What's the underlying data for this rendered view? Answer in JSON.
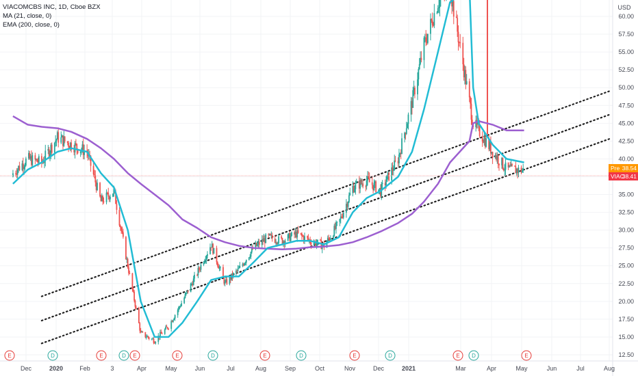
{
  "legend": {
    "symbol": "VIACOMCBS INC, 1D, Cboe BZX",
    "ma": "MA (21, close, 0)",
    "ema": "EMA (200, close, 0)"
  },
  "axis": {
    "currency": "USD",
    "ylim": [
      11.5,
      64
    ],
    "y_ticks": [
      "60.00",
      "57.50",
      "55.00",
      "52.50",
      "50.00",
      "47.50",
      "45.00",
      "42.50",
      "40.00",
      "37.50",
      "35.00",
      "32.50",
      "30.00",
      "27.50",
      "25.00",
      "22.50",
      "20.00",
      "17.50",
      "15.00",
      "12.50"
    ],
    "x_ticks": [
      "Dec",
      "2020",
      "Feb",
      "3",
      "Apr",
      "May",
      "Jun",
      "Jul",
      "Aug",
      "Sep",
      "Oct",
      "Nov",
      "Dec",
      "2021",
      "Mar",
      "Apr",
      "May",
      "Jun",
      "Jul",
      "Aug"
    ]
  },
  "price_tags": [
    {
      "label": "Pre",
      "value": "38.54",
      "color": "#ff9800"
    },
    {
      "label": "VIAC",
      "value": "38.41",
      "color": "#f23645"
    }
  ],
  "events": [
    "E",
    "D",
    "E",
    "D",
    "E",
    "E",
    "D",
    "E",
    "D",
    "E",
    "D",
    "E",
    "D",
    "E"
  ],
  "colors": {
    "up": "#26a69a",
    "down": "#ef5350",
    "ma": "#22bcd4",
    "ema": "#9c5fd0",
    "channel": "#222222",
    "earnings": "#e53935",
    "dividend": "#26a69a"
  },
  "chart_data": {
    "type": "candlestick",
    "title": "VIACOMCBS INC, 1D, Cboe BZX",
    "ylabel": "USD",
    "ylim": [
      11.5,
      64
    ],
    "dates": [
      "2019-11-15",
      "2019-12-01",
      "2019-12-16",
      "2020-01-02",
      "2020-01-17",
      "2020-02-03",
      "2020-02-18",
      "2020-03-03",
      "2020-03-18",
      "2020-04-01",
      "2020-04-16",
      "2020-05-01",
      "2020-05-16",
      "2020-06-01",
      "2020-06-16",
      "2020-07-01",
      "2020-07-16",
      "2020-08-01",
      "2020-08-16",
      "2020-09-01",
      "2020-09-16",
      "2020-10-01",
      "2020-10-16",
      "2020-11-01",
      "2020-11-16",
      "2020-12-01",
      "2020-12-16",
      "2021-01-04",
      "2021-01-19",
      "2021-02-01",
      "2021-02-16",
      "2021-03-01",
      "2021-03-22",
      "2021-03-26",
      "2021-04-01",
      "2021-04-16",
      "2021-05-01",
      "2021-05-20"
    ],
    "close": [
      38.0,
      40.0,
      39.5,
      43.0,
      42.0,
      41.0,
      34.0,
      35.5,
      25.0,
      15.5,
      14.5,
      16.5,
      20.0,
      24.0,
      28.0,
      22.5,
      24.5,
      27.5,
      29.0,
      28.5,
      29.5,
      28.5,
      27.8,
      31.0,
      36.0,
      37.0,
      35.5,
      40.0,
      48.0,
      56.0,
      62.0,
      64.0,
      48.0,
      45.0,
      44.0,
      41.0,
      38.5,
      38.41
    ],
    "series": [
      {
        "name": "MA (21, close, 0)",
        "values": [
          36.5,
          38.5,
          39.5,
          41.0,
          41.5,
          41.0,
          38.0,
          36.0,
          30.0,
          20.0,
          15.0,
          15.0,
          17.0,
          20.0,
          23.0,
          23.5,
          23.5,
          25.5,
          27.5,
          28.0,
          28.5,
          28.5,
          28.0,
          29.0,
          32.5,
          34.5,
          35.5,
          37.5,
          41.0,
          47.0,
          55.0,
          62.0,
          64.0,
          50.0,
          45.0,
          42.0,
          40.0,
          39.5
        ]
      },
      {
        "name": "EMA (200, close, 0)",
        "values": [
          46.0,
          44.8,
          44.5,
          44.3,
          43.8,
          42.8,
          41.5,
          40.0,
          38.0,
          36.5,
          35.0,
          33.5,
          31.5,
          30.3,
          29.0,
          28.3,
          27.8,
          27.5,
          27.4,
          27.3,
          27.4,
          27.6,
          27.7,
          27.9,
          28.3,
          29.0,
          29.8,
          31.0,
          32.3,
          34.0,
          36.5,
          39.5,
          42.5,
          45.0,
          45.3,
          44.8,
          44.0,
          44.0
        ]
      }
    ],
    "channel_lines": [
      {
        "name": "upper",
        "start": [
          "2019-12-16",
          20.7
        ],
        "end": [
          "2021-08-20",
          49.5
        ]
      },
      {
        "name": "middle",
        "start": [
          "2019-12-16",
          17.3
        ],
        "end": [
          "2021-08-20",
          46.2
        ]
      },
      {
        "name": "lower",
        "start": [
          "2019-12-16",
          14.1
        ],
        "end": [
          "2021-08-20",
          42.8
        ]
      }
    ]
  }
}
